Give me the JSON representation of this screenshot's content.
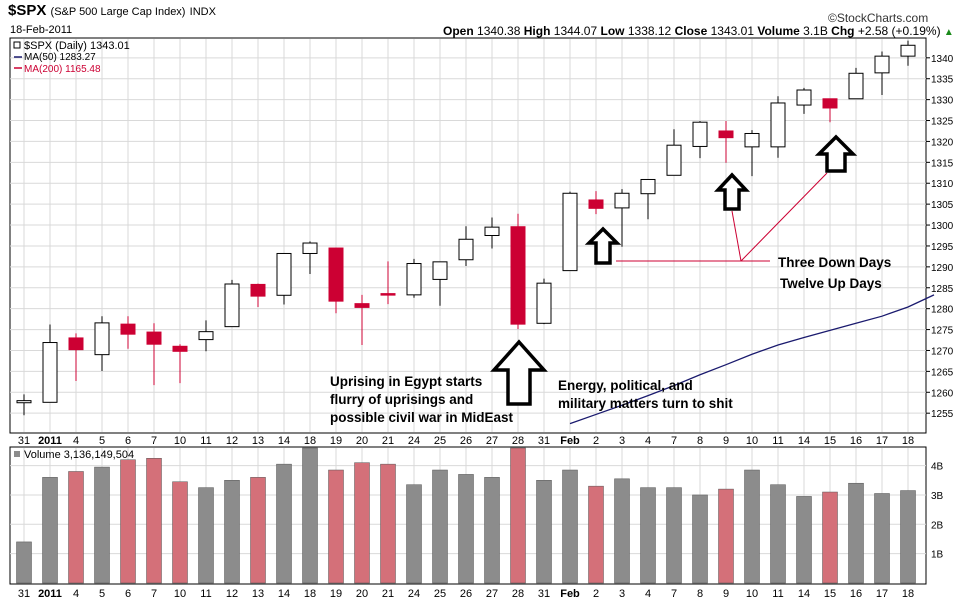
{
  "header": {
    "symbol": "$SPX",
    "name": "(S&P 500 Large Cap Index)",
    "exchange": "INDX",
    "date": "18-Feb-2011",
    "watermark": "©StockCharts.com",
    "quote": {
      "open_label": "Open",
      "open": "1340.38",
      "high_label": "High",
      "high": "1344.07",
      "low_label": "Low",
      "low": "1338.12",
      "close_label": "Close",
      "close": "1343.01",
      "volume_label": "Volume",
      "volume": "3.1B",
      "chg_label": "Chg",
      "chg": "+2.58 (+0.19%)",
      "chg_arrow": "▲"
    }
  },
  "legend": {
    "main": "$SPX (Daily) 1343.01",
    "ma50": "MA(50) 1283.27",
    "ma200": "MA(200) 1165.48",
    "volume": "Volume 3,136,149,504"
  },
  "colors": {
    "up_fill": "#ffffff",
    "down_fill": "#cc0033",
    "candle_stroke": "#000000",
    "ma50": "#1a1a6e",
    "ma200": "#cc0033",
    "vol_up": "#8c8c8c",
    "vol_down": "#d47079",
    "grid": "#d9d9d9",
    "annotation_line": "#cc0033"
  },
  "chart_data": {
    "type": "candlestick",
    "price_axis": {
      "ylim": [
        1250.5,
        1344.5
      ],
      "ticks": [
        1255,
        1260,
        1265,
        1270,
        1275,
        1280,
        1285,
        1290,
        1295,
        1300,
        1305,
        1310,
        1315,
        1320,
        1325,
        1330,
        1335,
        1340
      ]
    },
    "x_labels": [
      "31",
      "2011",
      "4",
      "5",
      "6",
      "7",
      "10",
      "11",
      "12",
      "13",
      "14",
      "18",
      "19",
      "20",
      "21",
      "24",
      "25",
      "26",
      "27",
      "28",
      "31",
      "Feb",
      "2",
      "3",
      "4",
      "7",
      "8",
      "9",
      "10",
      "11",
      "14",
      "15",
      "16",
      "17",
      "18"
    ],
    "bold_labels": [
      "2011",
      "Feb"
    ],
    "ohlc": [
      {
        "o": 1257.5,
        "h": 1259.5,
        "l": 1254.5,
        "c": 1258.0
      },
      {
        "o": 1257.6,
        "h": 1276.2,
        "l": 1257.6,
        "c": 1271.9
      },
      {
        "o": 1273.0,
        "h": 1274.1,
        "l": 1262.7,
        "c": 1270.2
      },
      {
        "o": 1269.0,
        "h": 1278.2,
        "l": 1265.1,
        "c": 1276.6
      },
      {
        "o": 1276.3,
        "h": 1278.2,
        "l": 1270.4,
        "c": 1273.9
      },
      {
        "o": 1274.4,
        "h": 1276.5,
        "l": 1261.7,
        "c": 1271.5
      },
      {
        "o": 1271.0,
        "h": 1271.5,
        "l": 1262.2,
        "c": 1269.8
      },
      {
        "o": 1272.6,
        "h": 1277.2,
        "l": 1269.8,
        "c": 1274.5
      },
      {
        "o": 1275.7,
        "h": 1286.9,
        "l": 1275.7,
        "c": 1285.9
      },
      {
        "o": 1285.8,
        "h": 1286.0,
        "l": 1280.4,
        "c": 1283.0
      },
      {
        "o": 1283.2,
        "h": 1293.2,
        "l": 1281.0,
        "c": 1293.2
      },
      {
        "o": 1293.2,
        "h": 1296.1,
        "l": 1288.3,
        "c": 1295.7
      },
      {
        "o": 1294.5,
        "h": 1294.5,
        "l": 1278.9,
        "c": 1281.8
      },
      {
        "o": 1281.2,
        "h": 1283.3,
        "l": 1271.3,
        "c": 1280.3
      },
      {
        "o": 1283.6,
        "h": 1291.3,
        "l": 1281.1,
        "c": 1283.4
      },
      {
        "o": 1283.3,
        "h": 1291.9,
        "l": 1282.6,
        "c": 1290.8
      },
      {
        "o": 1287.0,
        "h": 1291.2,
        "l": 1280.7,
        "c": 1291.2
      },
      {
        "o": 1291.7,
        "h": 1299.7,
        "l": 1290.2,
        "c": 1296.6
      },
      {
        "o": 1297.5,
        "h": 1301.8,
        "l": 1294.4,
        "c": 1299.5
      },
      {
        "o": 1299.6,
        "h": 1302.7,
        "l": 1275.1,
        "c": 1276.3
      },
      {
        "o": 1276.5,
        "h": 1287.2,
        "l": 1276.3,
        "c": 1286.1
      },
      {
        "o": 1289.1,
        "h": 1308.0,
        "l": 1289.1,
        "c": 1307.6
      },
      {
        "o": 1306.0,
        "h": 1308.1,
        "l": 1302.6,
        "c": 1304.0
      },
      {
        "o": 1304.1,
        "h": 1308.6,
        "l": 1294.8,
        "c": 1307.6
      },
      {
        "o": 1307.5,
        "h": 1311.0,
        "l": 1301.4,
        "c": 1310.9
      },
      {
        "o": 1311.9,
        "h": 1322.9,
        "l": 1311.9,
        "c": 1319.1
      },
      {
        "o": 1318.8,
        "h": 1324.9,
        "l": 1316.0,
        "c": 1324.6
      },
      {
        "o": 1322.5,
        "h": 1324.9,
        "l": 1314.9,
        "c": 1320.9
      },
      {
        "o": 1318.7,
        "h": 1322.7,
        "l": 1311.7,
        "c": 1321.9
      },
      {
        "o": 1318.7,
        "h": 1330.8,
        "l": 1316.1,
        "c": 1329.2
      },
      {
        "o": 1328.7,
        "h": 1332.8,
        "l": 1326.6,
        "c": 1332.3
      },
      {
        "o": 1330.2,
        "h": 1330.2,
        "l": 1324.6,
        "c": 1328.0
      },
      {
        "o": 1330.2,
        "h": 1337.6,
        "l": 1330.2,
        "c": 1336.3
      },
      {
        "o": 1336.4,
        "h": 1341.5,
        "l": 1331.1,
        "c": 1340.4
      },
      {
        "o": 1340.4,
        "h": 1344.1,
        "l": 1338.1,
        "c": 1343.0
      }
    ],
    "ma50": {
      "start_index": 21,
      "values": [
        1252.5,
        1254.7,
        1256.9,
        1259.2,
        1261.6,
        1264.2,
        1266.6,
        1269.1,
        1271.3,
        1273.1,
        1274.8,
        1276.5,
        1278.2,
        1280.4,
        1283.3
      ]
    },
    "volume": {
      "ylim": [
        0,
        4.6
      ],
      "ticks": [
        {
          "v": 1,
          "label": "1B"
        },
        {
          "v": 2,
          "label": "2B"
        },
        {
          "v": 3,
          "label": "3B"
        },
        {
          "v": 4,
          "label": "4B"
        }
      ],
      "unit": "B",
      "values": [
        1.4,
        3.6,
        3.8,
        3.95,
        4.2,
        4.25,
        3.45,
        3.25,
        3.5,
        3.6,
        4.05,
        4.6,
        3.85,
        4.1,
        4.05,
        3.35,
        3.85,
        3.7,
        3.6,
        4.6,
        3.5,
        3.85,
        3.3,
        3.55,
        3.25,
        3.25,
        3.0,
        3.2,
        3.85,
        3.35,
        2.95,
        3.1,
        3.4,
        3.05,
        3.15
      ]
    }
  },
  "annotations": {
    "egypt": [
      "Uprising in Egypt starts",
      "flurry of uprisings and",
      "possible civil war in MidEast"
    ],
    "energy": [
      "Energy, political, and",
      "military matters turn to shit"
    ],
    "down_days": "Three Down Days",
    "up_days": "Twelve Up Days"
  }
}
